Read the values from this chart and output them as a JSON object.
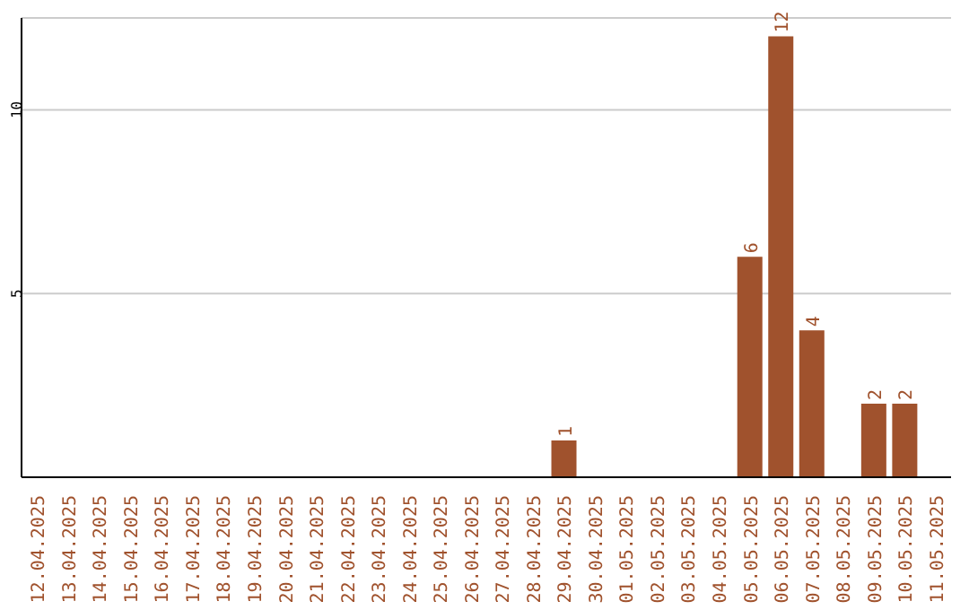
{
  "chart_data": {
    "type": "bar",
    "categories": [
      "12.04.2025",
      "13.04.2025",
      "14.04.2025",
      "15.04.2025",
      "16.04.2025",
      "17.04.2025",
      "18.04.2025",
      "19.04.2025",
      "20.04.2025",
      "21.04.2025",
      "22.04.2025",
      "23.04.2025",
      "24.04.2025",
      "25.04.2025",
      "26.04.2025",
      "27.04.2025",
      "28.04.2025",
      "29.04.2025",
      "30.04.2025",
      "01.05.2025",
      "02.05.2025",
      "03.05.2025",
      "04.05.2025",
      "05.05.2025",
      "06.05.2025",
      "07.05.2025",
      "08.05.2025",
      "09.05.2025",
      "10.05.2025",
      "11.05.2025"
    ],
    "values": [
      0,
      0,
      0,
      0,
      0,
      0,
      0,
      0,
      0,
      0,
      0,
      0,
      0,
      0,
      0,
      0,
      0,
      1,
      0,
      0,
      0,
      0,
      0,
      6,
      12,
      4,
      0,
      2,
      2,
      0
    ],
    "value_labels": [
      null,
      null,
      null,
      null,
      null,
      null,
      null,
      null,
      null,
      null,
      null,
      null,
      null,
      null,
      null,
      null,
      null,
      "1",
      null,
      null,
      null,
      null,
      null,
      "6",
      "12",
      "4",
      null,
      "2",
      "2",
      null
    ],
    "color": "#a0522d",
    "ylim": [
      0,
      12.5
    ],
    "yticks": [
      5,
      10
    ],
    "grid": "y"
  }
}
